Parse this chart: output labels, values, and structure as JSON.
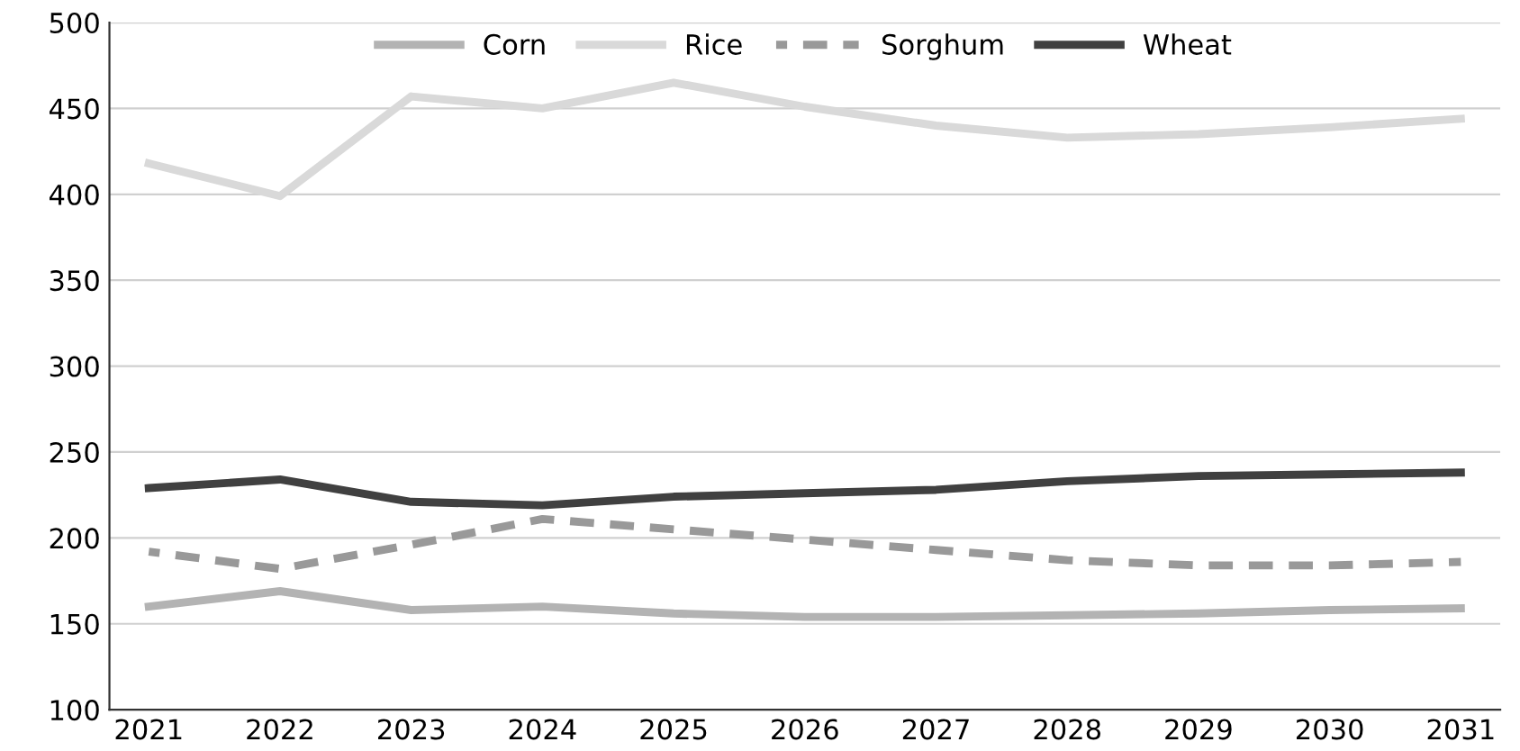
{
  "chart_data": {
    "type": "line",
    "categories": [
      "2021",
      "2022",
      "2023",
      "2024",
      "2025",
      "2026",
      "2027",
      "2028",
      "2029",
      "2030",
      "2031"
    ],
    "series": [
      {
        "name": "Corn",
        "color": "#b3b3b3",
        "line_style": "solid",
        "values": [
          160,
          169,
          158,
          160,
          156,
          154,
          154,
          155,
          156,
          158,
          159
        ]
      },
      {
        "name": "Rice",
        "color": "#d9d9d9",
        "line_style": "solid",
        "values": [
          418,
          399,
          457,
          450,
          465,
          451,
          440,
          433,
          435,
          439,
          444
        ]
      },
      {
        "name": "Sorghum",
        "color": "#999999",
        "line_style": "dashed",
        "values": [
          192,
          182,
          196,
          211,
          205,
          199,
          193,
          187,
          184,
          184,
          186
        ]
      },
      {
        "name": "Wheat",
        "color": "#404040",
        "line_style": "solid",
        "values": [
          229,
          234,
          221,
          219,
          224,
          226,
          228,
          233,
          236,
          237,
          238
        ]
      }
    ],
    "ylim": [
      100,
      500
    ],
    "yticks": [
      100,
      150,
      200,
      250,
      300,
      350,
      400,
      450,
      500
    ],
    "grid": "y",
    "legend": "top",
    "marker": "none"
  }
}
